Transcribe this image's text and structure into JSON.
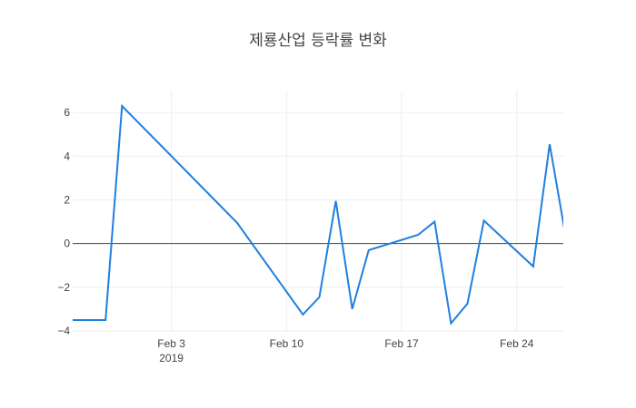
{
  "chart_data": {
    "type": "line",
    "title": "제룡산업 등락률 변화",
    "xlabel": "",
    "ylabel": "",
    "x_range": [
      "2019-01-28",
      "2019-02-26"
    ],
    "ylim": [
      -4,
      7
    ],
    "grid": true,
    "colors": {
      "line": "#1f7fe0",
      "zero_line": "#444444",
      "grid": "#eeeeee"
    },
    "y_ticks": [
      {
        "value": -4,
        "label": "−4"
      },
      {
        "value": -2,
        "label": "−2"
      },
      {
        "value": 0,
        "label": "0"
      },
      {
        "value": 2,
        "label": "2"
      },
      {
        "value": 4,
        "label": "4"
      },
      {
        "value": 6,
        "label": "6"
      }
    ],
    "x_ticks": [
      {
        "date": "2019-02-03",
        "label": "Feb 3",
        "sublabel": "2019"
      },
      {
        "date": "2019-02-10",
        "label": "Feb 10",
        "sublabel": ""
      },
      {
        "date": "2019-02-17",
        "label": "Feb 17",
        "sublabel": ""
      },
      {
        "date": "2019-02-24",
        "label": "Feb 24",
        "sublabel": ""
      }
    ],
    "series": [
      {
        "name": "",
        "x": [
          "2019-01-28",
          "2019-01-30",
          "2019-01-31",
          "2019-02-07",
          "2019-02-11",
          "2019-02-12",
          "2019-02-13",
          "2019-02-14",
          "2019-02-15",
          "2019-02-18",
          "2019-02-19",
          "2019-02-20",
          "2019-02-21",
          "2019-02-22",
          "2019-02-25",
          "2019-02-26",
          "2019-02-27"
        ],
        "y": [
          -3.5,
          -3.5,
          6.3,
          0.95,
          -3.25,
          -2.45,
          1.95,
          -3.0,
          -0.3,
          0.4,
          1.0,
          -3.65,
          -2.75,
          1.05,
          -1.05,
          4.55,
          0.2
        ]
      }
    ]
  }
}
